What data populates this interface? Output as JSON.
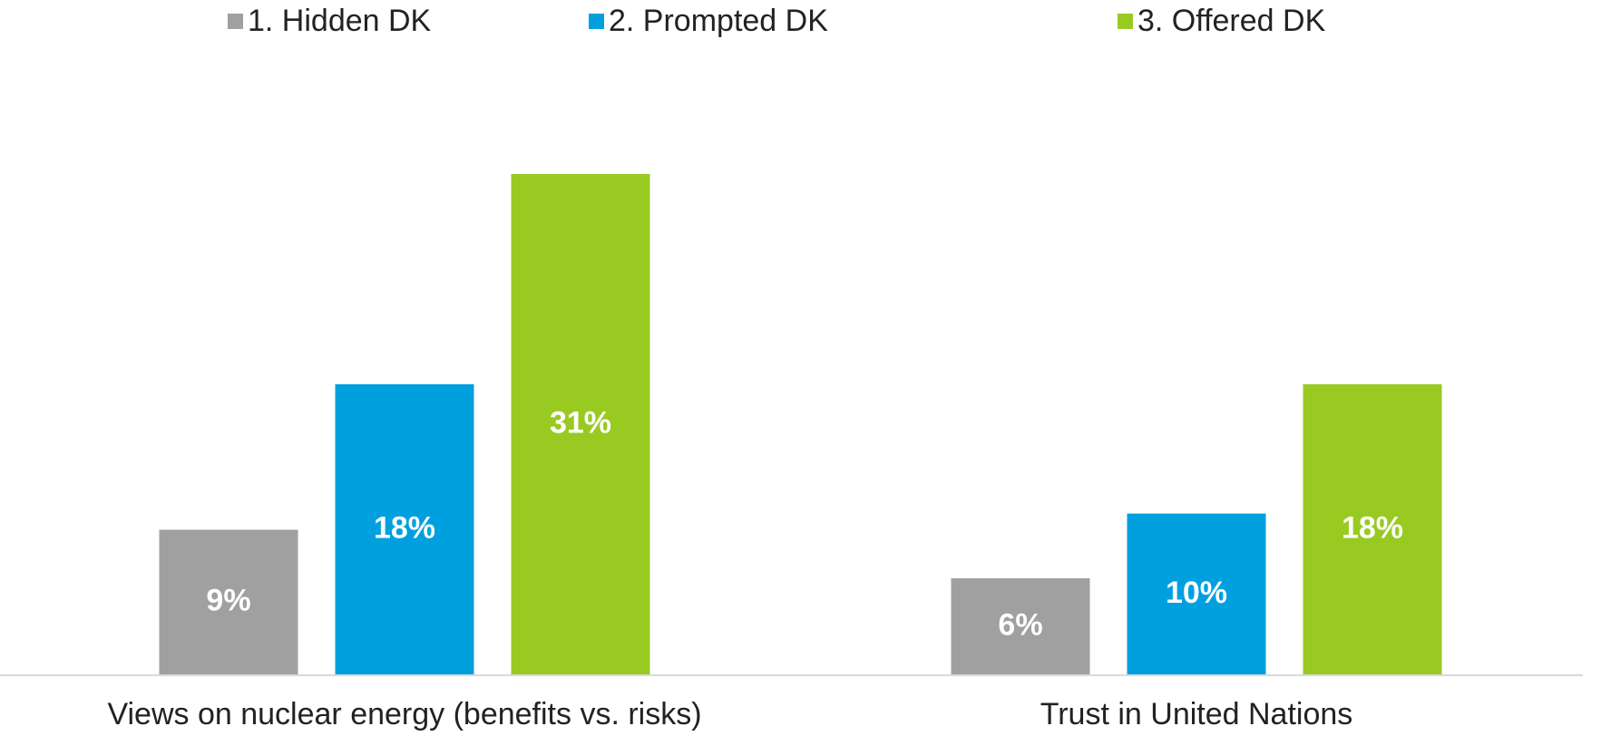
{
  "chart_data": {
    "type": "bar",
    "categories": [
      "Views on nuclear energy (benefits vs. risks)",
      "Trust in United Nations"
    ],
    "series": [
      {
        "name": "1. Hidden DK",
        "color": "#a0a0a0",
        "values": [
          9,
          6
        ],
        "value_labels": [
          "9%",
          "6%"
        ]
      },
      {
        "name": "2. Prompted DK",
        "color": "#00a0df",
        "values": [
          18,
          10
        ],
        "value_labels": [
          "18%",
          "10%"
        ]
      },
      {
        "name": "3. Offered DK",
        "color": "#99ca22",
        "values": [
          31,
          18
        ],
        "value_labels": [
          "31%",
          "18%"
        ]
      }
    ],
    "legend": "top"
  }
}
